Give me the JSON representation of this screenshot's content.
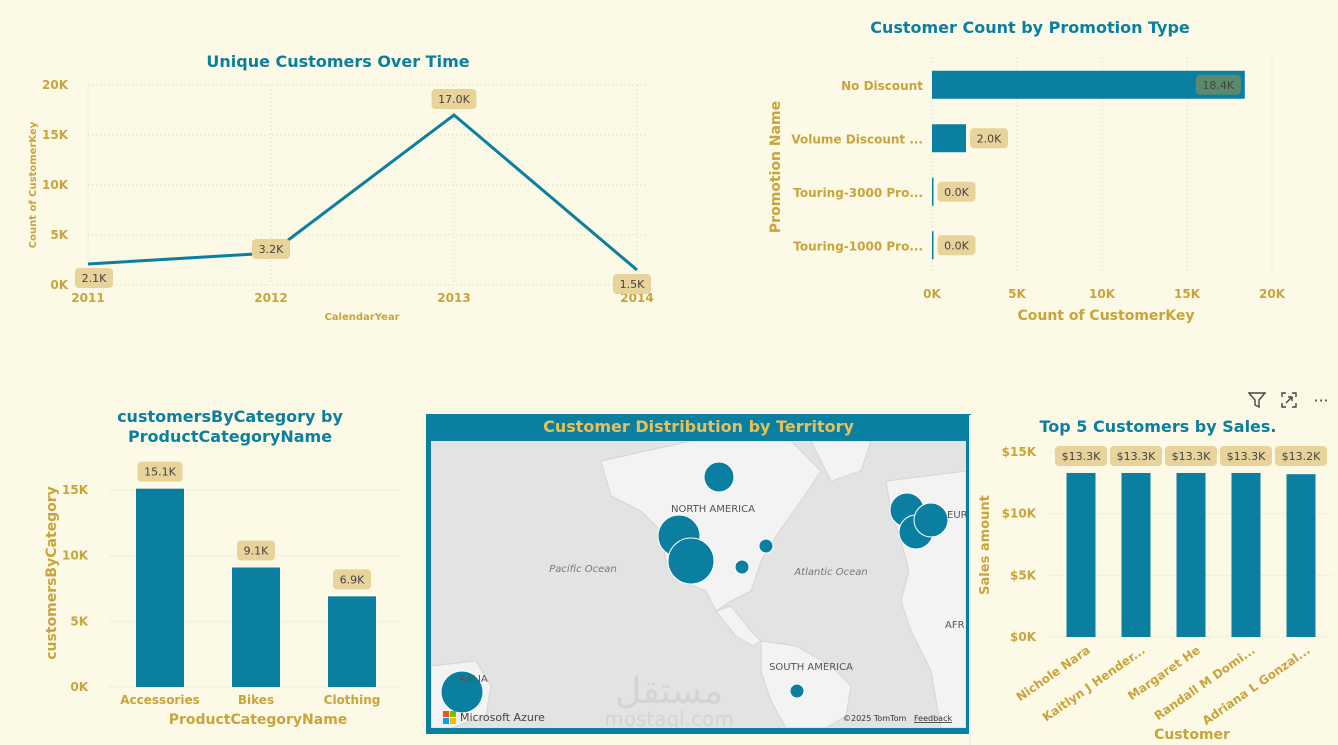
{
  "colors": {
    "primary": "#0b7fa0",
    "accent": "#e6c15b",
    "label_bg": "#e8d39a",
    "background": "#fcf9e6"
  },
  "toolbar": {
    "filter_icon": "filter-icon",
    "focus_icon": "expand-icon",
    "more_icon": "more-options-icon",
    "more_label": "···"
  },
  "chart_data": [
    {
      "id": "line",
      "type": "line",
      "title": "Unique Customers Over Time",
      "xlabel": "CalendarYear",
      "ylabel": "Count of CustomerKey",
      "x": [
        "2011",
        "2012",
        "2013",
        "2014"
      ],
      "values": [
        2100,
        3200,
        17000,
        1500
      ],
      "labels": [
        "2.1K",
        "3.2K",
        "17.0K",
        "1.5K"
      ],
      "yticks": [
        "0K",
        "5K",
        "10K",
        "15K",
        "20K"
      ],
      "ylim": [
        0,
        20000
      ],
      "grid": true
    },
    {
      "id": "hbar",
      "type": "bar",
      "orientation": "horizontal",
      "title": "Customer Count by Promotion Type",
      "xlabel": "Count of CustomerKey",
      "ylabel": "Promotion Name",
      "categories": [
        "No Discount",
        "Volume Discount ...",
        "Touring-3000 Pro...",
        "Touring-1000 Pro..."
      ],
      "values": [
        18400,
        2000,
        0,
        0
      ],
      "labels": [
        "18.4K",
        "2.0K",
        "0.0K",
        "0.0K"
      ],
      "xticks": [
        "0K",
        "5K",
        "10K",
        "15K",
        "20K"
      ],
      "xlim": [
        0,
        20000
      ],
      "grid": true
    },
    {
      "id": "vbar",
      "type": "bar",
      "title_lines": [
        "customersByCategory by",
        "ProductCategoryName"
      ],
      "xlabel": "ProductCategoryName",
      "ylabel": "customersByCategory",
      "categories": [
        "Accessories",
        "Bikes",
        "Clothing"
      ],
      "values": [
        15100,
        9100,
        6900
      ],
      "labels": [
        "15.1K",
        "9.1K",
        "6.9K"
      ],
      "yticks": [
        "0K",
        "5K",
        "10K",
        "15K"
      ],
      "ylim": [
        0,
        15000
      ],
      "grid": true
    },
    {
      "id": "top5",
      "type": "bar",
      "title": "Top 5 Customers by Sales.",
      "xlabel": "Customer",
      "ylabel": "Sales amount",
      "categories": [
        "Nichole Nara",
        "Kaitlyn J Hender...",
        "Margaret He",
        "Randall M Domi...",
        "Adriana L Gonzal..."
      ],
      "values": [
        13300,
        13300,
        13300,
        13300,
        13200
      ],
      "labels": [
        "$13.3K",
        "$13.3K",
        "$13.3K",
        "$13.3K",
        "$13.2K"
      ],
      "yticks": [
        "$0K",
        "$5K",
        "$10K",
        "$15K"
      ],
      "ylim": [
        0,
        15000
      ],
      "grid": true
    }
  ],
  "map": {
    "title": "Customer Distribution by Territory",
    "labels": {
      "north_america": "NORTH AMERICA",
      "pacific": "Pacific Ocean",
      "atlantic": "Atlantic Ocean",
      "south_america": "SOUTH AMERICA",
      "europe": "EURO",
      "africa": "AFR",
      "australia": "RALIA"
    },
    "attribution": "©2025 TomTom",
    "feedback": "Feedback",
    "brand": "Microsoft Azure"
  },
  "watermark": {
    "arabic": "مستقل",
    "latin": "mostaql.com"
  }
}
